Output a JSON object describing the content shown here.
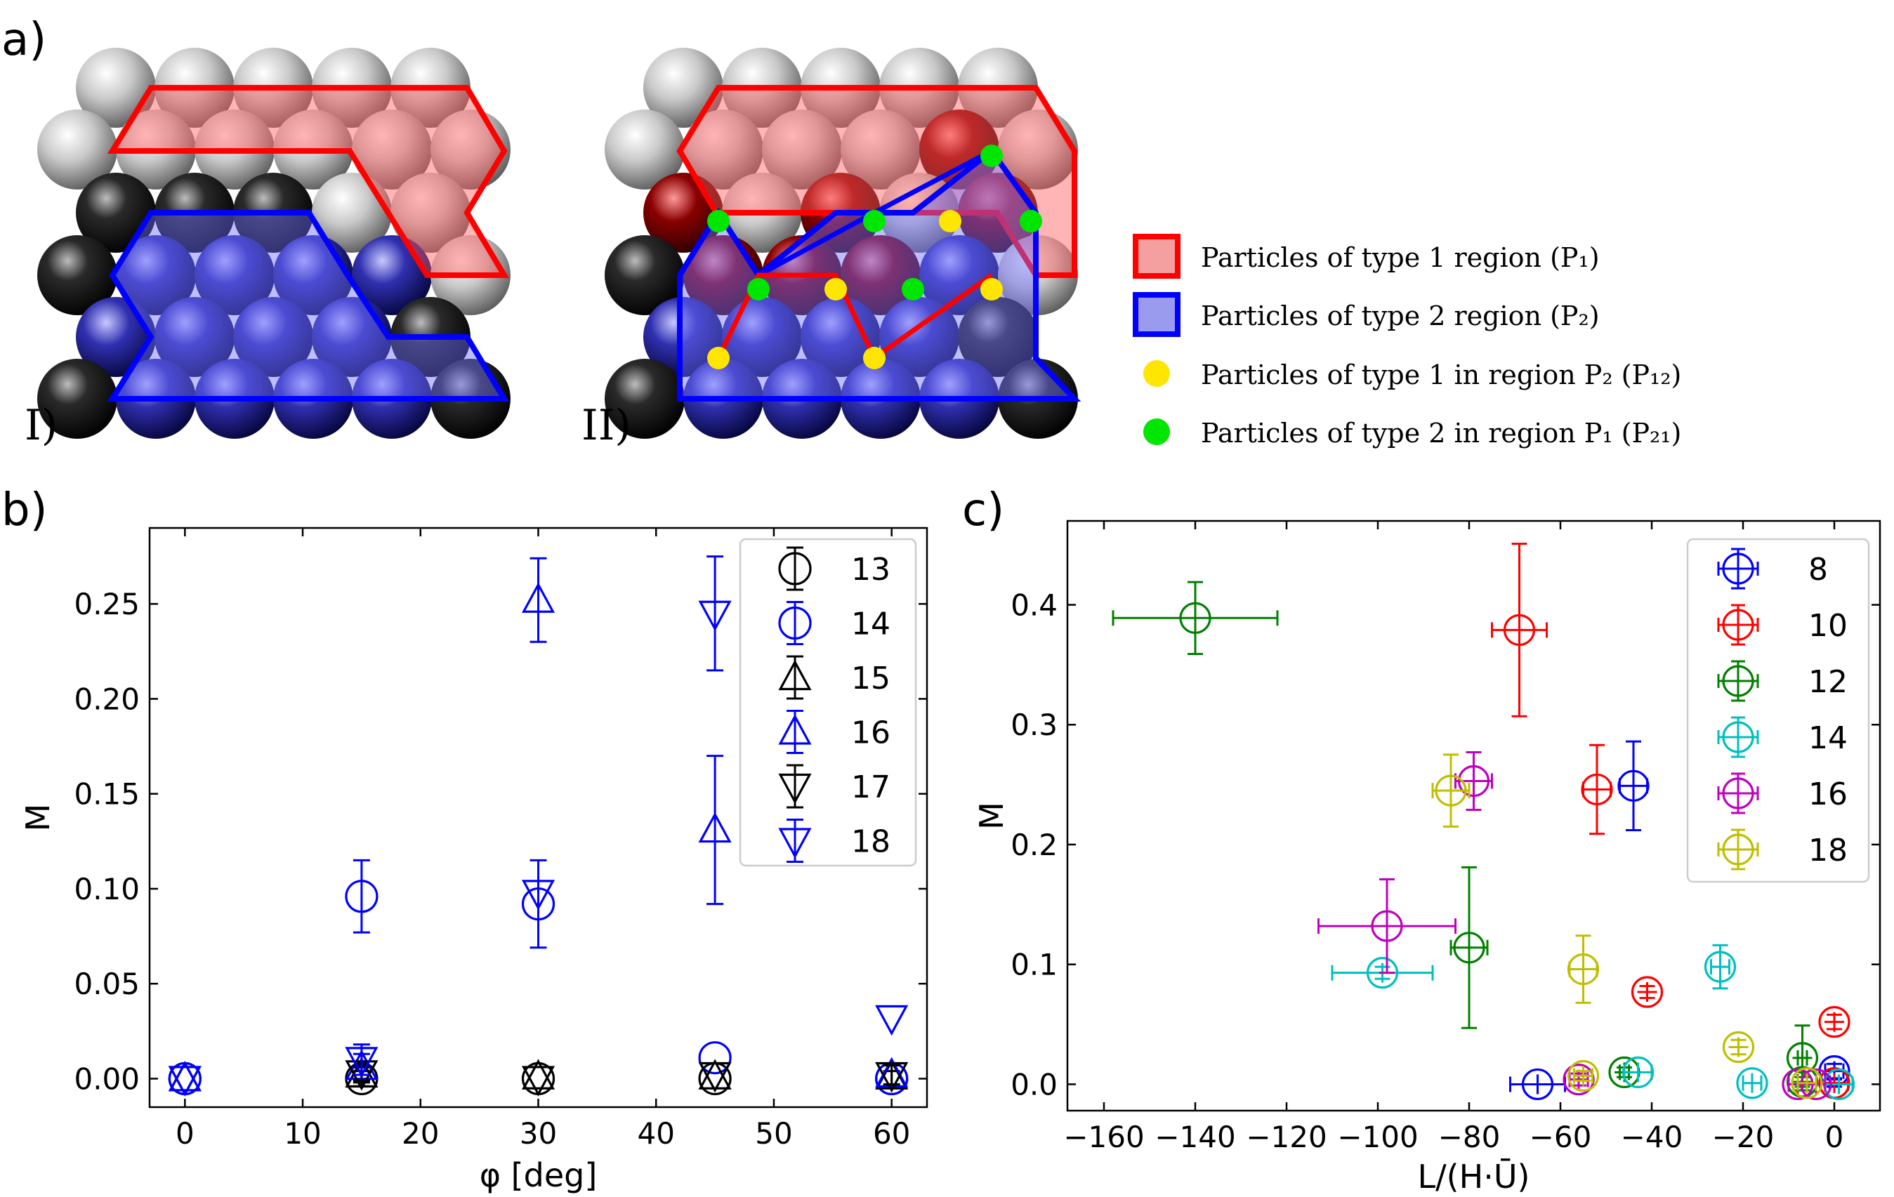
{
  "panels": {
    "a": {
      "letter": "a)",
      "sub_I": "I)",
      "sub_II": "II)"
    },
    "b": {
      "letter": "b)"
    },
    "c": {
      "letter": "c)"
    }
  },
  "colors": {
    "red": "#ff0000",
    "blue": "#0000ff",
    "green": "#008000",
    "cyan": "#00bfbf",
    "magenta": "#bf00bf",
    "olive": "#bfbf00",
    "black": "#000000",
    "yellow_dot": "#ffe600",
    "green_dot": "#00e600"
  },
  "legend_a": [
    {
      "type": "box",
      "color": "#ff0000",
      "fill": "#f4a0a0",
      "text": "Particles of type 1 region (P₁)"
    },
    {
      "type": "box",
      "color": "#0000ff",
      "fill": "#9a9aee",
      "text": "Particles of type 2 region (P₂)"
    },
    {
      "type": "dot",
      "color": "#ffe600",
      "text": "Particles of type 1 in region P₂ (P₁₂)"
    },
    {
      "type": "dot",
      "color": "#00e600",
      "text": "Particles of type 2 in region P₁ (P₂₁)"
    }
  ],
  "chart_data": [
    {
      "id": "b",
      "type": "scatter",
      "xlabel": "φ [deg]",
      "ylabel": "M",
      "xlim": [
        -3,
        63
      ],
      "ylim": [
        -0.015,
        0.29
      ],
      "xticks": [
        "0",
        "10",
        "20",
        "30",
        "40",
        "50",
        "60"
      ],
      "yticks": [
        "0.00",
        "0.05",
        "0.10",
        "0.15",
        "0.20",
        "0.25"
      ],
      "legend_position": "upper right",
      "series": [
        {
          "name": "13",
          "marker": "circle",
          "color": "#000000",
          "points": [
            [
              0,
              0,
              0
            ],
            [
              15,
              0,
              0.004
            ],
            [
              30,
              0,
              0
            ],
            [
              45,
              0,
              0
            ],
            [
              60,
              0,
              0.004
            ]
          ]
        },
        {
          "name": "14",
          "marker": "circle",
          "color": "#0000ff",
          "points": [
            [
              0,
              0,
              0
            ],
            [
              15,
              0.096,
              0.019
            ],
            [
              30,
              0.092,
              0.023
            ],
            [
              45,
              0.011,
              0
            ],
            [
              60,
              0,
              0
            ]
          ]
        },
        {
          "name": "15",
          "marker": "triangle-up",
          "color": "#000000",
          "points": [
            [
              0,
              0,
              0
            ],
            [
              15,
              0.002,
              0.004
            ],
            [
              30,
              0.001,
              0
            ],
            [
              45,
              0.001,
              0
            ],
            [
              60,
              0.001,
              0
            ]
          ]
        },
        {
          "name": "16",
          "marker": "triangle-up",
          "color": "#0000ff",
          "points": [
            [
              0,
              0,
              0
            ],
            [
              15,
              0.006,
              0.007
            ],
            [
              30,
              0.252,
              0.022
            ],
            [
              45,
              0.131,
              0.039
            ],
            [
              60,
              0.002,
              0
            ]
          ]
        },
        {
          "name": "17",
          "marker": "triangle-down",
          "color": "#000000",
          "points": [
            [
              0,
              0,
              0
            ],
            [
              15,
              0.003,
              0.004
            ],
            [
              30,
              0,
              0
            ],
            [
              45,
              0.002,
              0
            ],
            [
              60,
              0.002,
              0.005
            ]
          ]
        },
        {
          "name": "18",
          "marker": "triangle-down",
          "color": "#0000ff",
          "points": [
            [
              0,
              0,
              0
            ],
            [
              15,
              0.01,
              0.008
            ],
            [
              30,
              0.098,
              0
            ],
            [
              45,
              0.245,
              0.03
            ],
            [
              60,
              0.032,
              0
            ]
          ]
        }
      ]
    },
    {
      "id": "c",
      "type": "scatter",
      "xlabel": "L/(H·Ū)",
      "ylabel": "M",
      "xlim": [
        -168,
        10
      ],
      "ylim": [
        -0.022,
        0.47
      ],
      "xticks": [
        "−160",
        "−140",
        "−120",
        "−100",
        "−80",
        "−60",
        "−40",
        "−20",
        "0"
      ],
      "yticks": [
        "0.0",
        "0.1",
        "0.2",
        "0.3",
        "0.4"
      ],
      "legend_position": "upper right",
      "series": [
        {
          "name": "8",
          "color": "#0000ff",
          "points": [
            [
              -44,
              0.249,
              3,
              0.037
            ],
            [
              -65,
              0,
              6,
              0
            ],
            [
              0,
              0.011,
              2,
              0.006
            ],
            [
              0,
              0.001,
              1,
              0.003
            ]
          ]
        },
        {
          "name": "10",
          "color": "#ff0000",
          "points": [
            [
              -69,
              0.379,
              6,
              0.072
            ],
            [
              -52,
              0.246,
              3,
              0.037
            ],
            [
              -41,
              0.077,
              0,
              0.005
            ],
            [
              0,
              0.052,
              0,
              0.006
            ],
            [
              0,
              0.001,
              3,
              0
            ]
          ]
        },
        {
          "name": "12",
          "color": "#008000",
          "points": [
            [
              -140,
              0.389,
              18,
              0.03
            ],
            [
              -80,
              0.114,
              4,
              0.067
            ],
            [
              -46,
              0.01,
              1,
              0.004
            ],
            [
              -7,
              0.022,
              1,
              0.027
            ],
            [
              -7,
              0.002,
              1,
              0.004
            ]
          ]
        },
        {
          "name": "14",
          "color": "#00bfbf",
          "points": [
            [
              -99,
              0.093,
              11,
              0.005
            ],
            [
              -25,
              0.098,
              2,
              0.018
            ],
            [
              -43,
              0.01,
              3,
              0
            ],
            [
              -18,
              0.001,
              2,
              0
            ],
            [
              1,
              0,
              3,
              0
            ]
          ]
        },
        {
          "name": "16",
          "color": "#bf00bf",
          "points": [
            [
              -79,
              0.253,
              4,
              0.024
            ],
            [
              -98,
              0.132,
              15,
              0.039
            ],
            [
              -56,
              0.004,
              2,
              0.005
            ],
            [
              -8,
              0,
              2,
              0
            ],
            [
              -4,
              0,
              2,
              0
            ]
          ]
        },
        {
          "name": "18",
          "color": "#bfbf00",
          "points": [
            [
              -84,
              0.245,
              4,
              0.03
            ],
            [
              -55,
              0.096,
              3,
              0.028
            ],
            [
              -55,
              0.007,
              2,
              0.004
            ],
            [
              -21,
              0.031,
              0,
              0.006
            ],
            [
              -6,
              0.001,
              2,
              0
            ]
          ]
        }
      ]
    }
  ]
}
